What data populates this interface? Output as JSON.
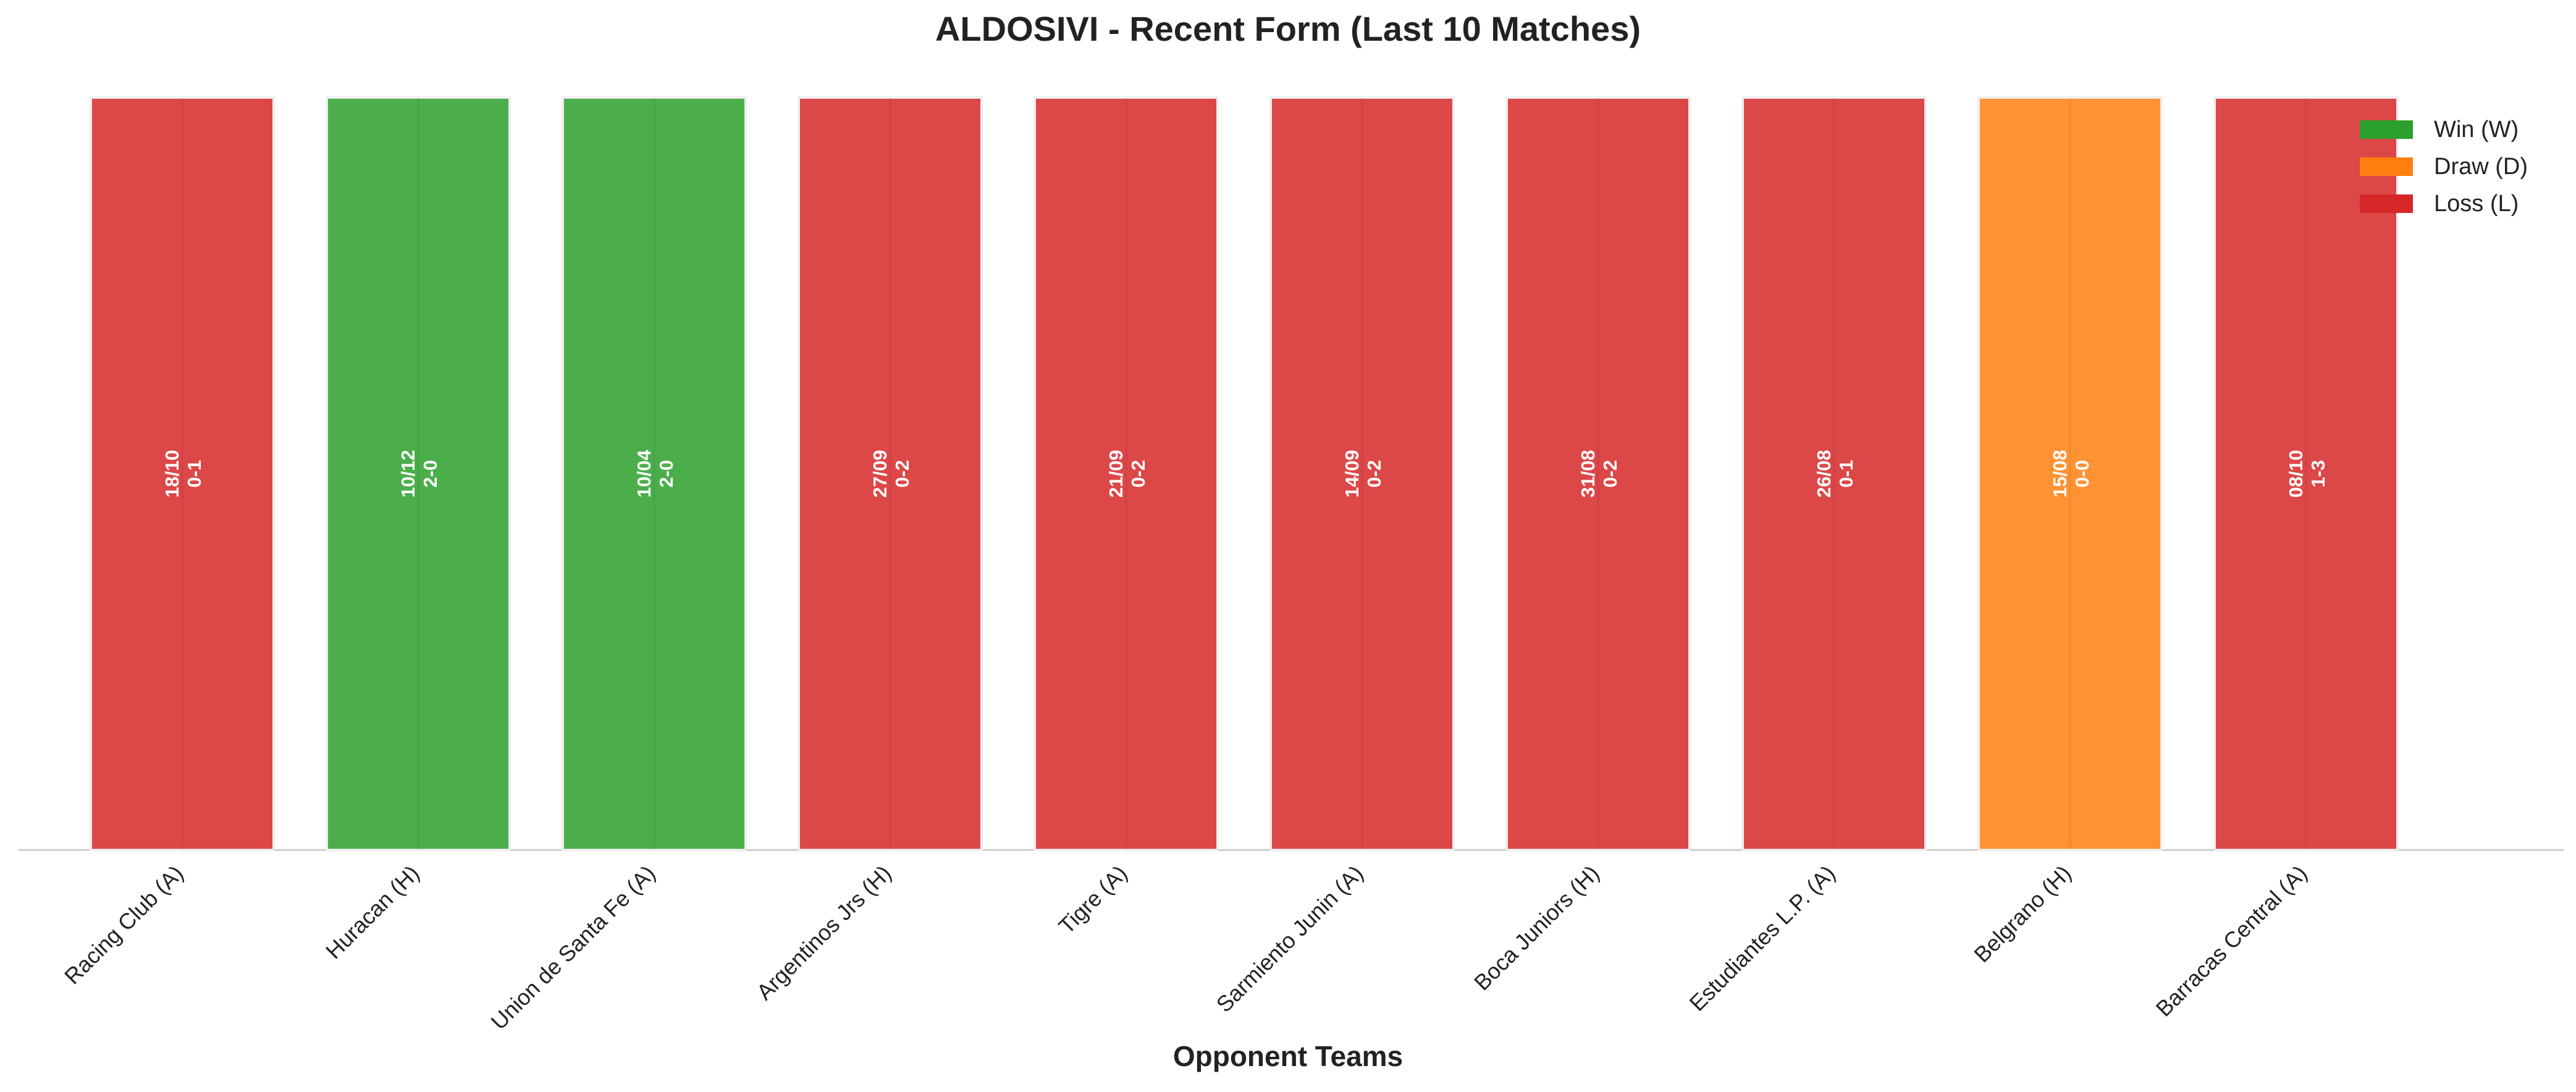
{
  "chart_data": {
    "type": "bar",
    "title": "ALDOSIVI - Recent Form (Last 10 Matches)",
    "xlabel": "Opponent Teams",
    "ylabel": "",
    "ylim": [
      0,
      1
    ],
    "grid": false,
    "legend_position": "top-right",
    "categories": [
      "Racing Club (A)",
      "Huracan (H)",
      "Union de Santa Fe (A)",
      "Argentinos Jrs (H)",
      "Tigre (A)",
      "Sarmiento Junin (A)",
      "Boca Juniors (H)",
      "Estudiantes L.P. (A)",
      "Belgrano (H)",
      "Barracas Central (A)"
    ],
    "values": [
      1,
      1,
      1,
      1,
      1,
      1,
      1,
      1,
      1,
      1
    ],
    "results": [
      "L",
      "W",
      "W",
      "L",
      "L",
      "L",
      "L",
      "L",
      "D",
      "L"
    ],
    "dates": [
      "18/10",
      "10/12",
      "10/04",
      "27/09",
      "21/09",
      "14/09",
      "31/08",
      "26/08",
      "15/08",
      "08/10"
    ],
    "scores": [
      "0-1",
      "2-0",
      "2-0",
      "0-2",
      "0-2",
      "0-2",
      "0-2",
      "0-1",
      "0-0",
      "1-3"
    ],
    "legend": [
      {
        "key": "W",
        "label": "Win (W)",
        "color": "#2ca02c"
      },
      {
        "key": "D",
        "label": "Draw (D)",
        "color": "#ff7f0e"
      },
      {
        "key": "L",
        "label": "Loss (L)",
        "color": "#d62728"
      }
    ]
  }
}
